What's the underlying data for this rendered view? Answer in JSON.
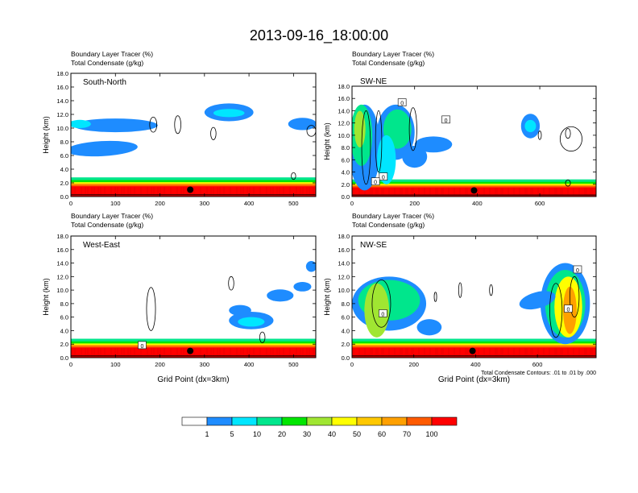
{
  "title": "2013-09-16_18:00:00",
  "panel_label_line1": "Boundary Layer Tracer   (%)",
  "panel_label_line2": "Total Condensate   (g/kg)",
  "ylabel": "Height (km)",
  "xlabel": "Grid Point (dx=3km)",
  "contour_note": "Total Condensate Contours: .01 to .01 by .000",
  "colors": [
    "#ffffff",
    "#1e8cff",
    "#00e6ff",
    "#00e68c",
    "#00e600",
    "#a0e632",
    "#ffff00",
    "#ffc800",
    "#ffa000",
    "#ff5a00",
    "#ff0000"
  ],
  "colorbar_labels": [
    "1",
    "5",
    "10",
    "20",
    "30",
    "40",
    "50",
    "60",
    "70",
    "100"
  ],
  "chart_data": [
    {
      "type": "heatmap",
      "name": "South-North",
      "xlim": [
        0,
        550
      ],
      "ylim": [
        0,
        18
      ],
      "x_ticks": [
        "0",
        "100",
        "200",
        "300",
        "400",
        "500"
      ],
      "y_ticks": [
        "0.0",
        "2.0",
        "4.0",
        "6.0",
        "8.0",
        "10.0",
        "12.0",
        "14.0",
        "16.0",
        "18.0"
      ]
    },
    {
      "type": "heatmap",
      "name": "SW-NE",
      "xlim": [
        0,
        780
      ],
      "ylim": [
        0,
        18
      ],
      "x_ticks": [
        "0",
        "200",
        "400",
        "600"
      ],
      "y_ticks": [
        "0.0",
        "2.0",
        "4.0",
        "6.0",
        "8.0",
        "10.0",
        "12.0",
        "14.0",
        "16.0",
        "18.0"
      ],
      "contour_labels": [
        "0",
        "0",
        "0",
        "0"
      ]
    },
    {
      "type": "heatmap",
      "name": "West-East",
      "xlim": [
        0,
        550
      ],
      "ylim": [
        0,
        18
      ],
      "x_ticks": [
        "0",
        "100",
        "200",
        "300",
        "400",
        "500"
      ],
      "y_ticks": [
        "0.0",
        "2.0",
        "4.0",
        "6.0",
        "8.0",
        "10.0",
        "12.0",
        "14.0",
        "16.0",
        "18.0"
      ],
      "contour_labels": [
        "0"
      ]
    },
    {
      "type": "heatmap",
      "name": "NW-SE",
      "xlim": [
        0,
        790
      ],
      "ylim": [
        0,
        18
      ],
      "x_ticks": [
        "0",
        "200",
        "400",
        "600"
      ],
      "y_ticks": [
        "0.0",
        "2.0",
        "4.0",
        "6.0",
        "8.0",
        "10.0",
        "12.0",
        "14.0",
        "16.0",
        "18.0"
      ],
      "contour_labels": [
        "0",
        "0",
        "0"
      ]
    }
  ]
}
